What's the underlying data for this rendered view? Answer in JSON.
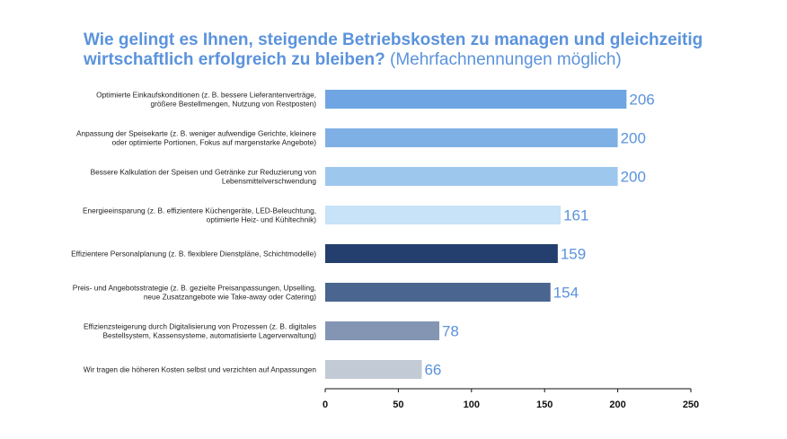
{
  "chart_data": {
    "type": "bar",
    "orientation": "horizontal",
    "title": "Wie gelingt es Ihnen, steigende Betriebskosten zu managen und gleichzeitig wirtschaftlich erfolgreich zu bleiben?",
    "subtitle": "(Mehrfachnennungen möglich)",
    "categories": [
      [
        "Optimierte Einkaufskonditionen (z. B. bessere Lieferantenverträge,",
        "größere Bestellmengen, Nutzung von Restposten)"
      ],
      [
        "Anpassung der Speisekarte (z. B. weniger aufwendige Gerichte, kleinere",
        "oder optimierte Portionen, Fokus auf margenstarke Angebote)"
      ],
      [
        "Bessere Kalkulation der Speisen und Getränke zur Reduzierung von",
        "Lebensmittelverschwendung"
      ],
      [
        "Energieeinsparung (z. B. effizientere Küchengeräte, LED-Beleuchtung,",
        "optimierte Heiz- und Kühltechnik)"
      ],
      [
        "Effizientere Personalplanung (z. B. flexiblere Dienstpläne, Schichtmodelle)"
      ],
      [
        "Preis- und Angebotsstrategie (z. B. gezielte Preisanpassungen, Upselling,",
        "neue Zusatzangebote wie Take-away oder Catering)"
      ],
      [
        "Effizienzsteigerung durch Digitalisierung von Prozessen (z. B. digitales",
        "Bestellsystem, Kassensysteme, automatisierte Lagerverwaltung)"
      ],
      [
        "Wir tragen die höheren Kosten selbst und verzichten auf Anpassungen"
      ]
    ],
    "values": [
      206,
      200,
      200,
      161,
      159,
      154,
      78,
      66
    ],
    "bar_colors": [
      "#6fa5e3",
      "#7fb0e5",
      "#9ec7ee",
      "#c8e2f7",
      "#243f6d",
      "#4a6590",
      "#8395b3",
      "#c2cad6"
    ],
    "value_label_color": "#5b93dc",
    "title_color": "#5b93dc",
    "xlim": [
      0,
      250
    ],
    "xticks": [
      0,
      50,
      100,
      150,
      200,
      250
    ],
    "xlabel": "",
    "ylabel": "",
    "grid": false,
    "legend": "none"
  }
}
